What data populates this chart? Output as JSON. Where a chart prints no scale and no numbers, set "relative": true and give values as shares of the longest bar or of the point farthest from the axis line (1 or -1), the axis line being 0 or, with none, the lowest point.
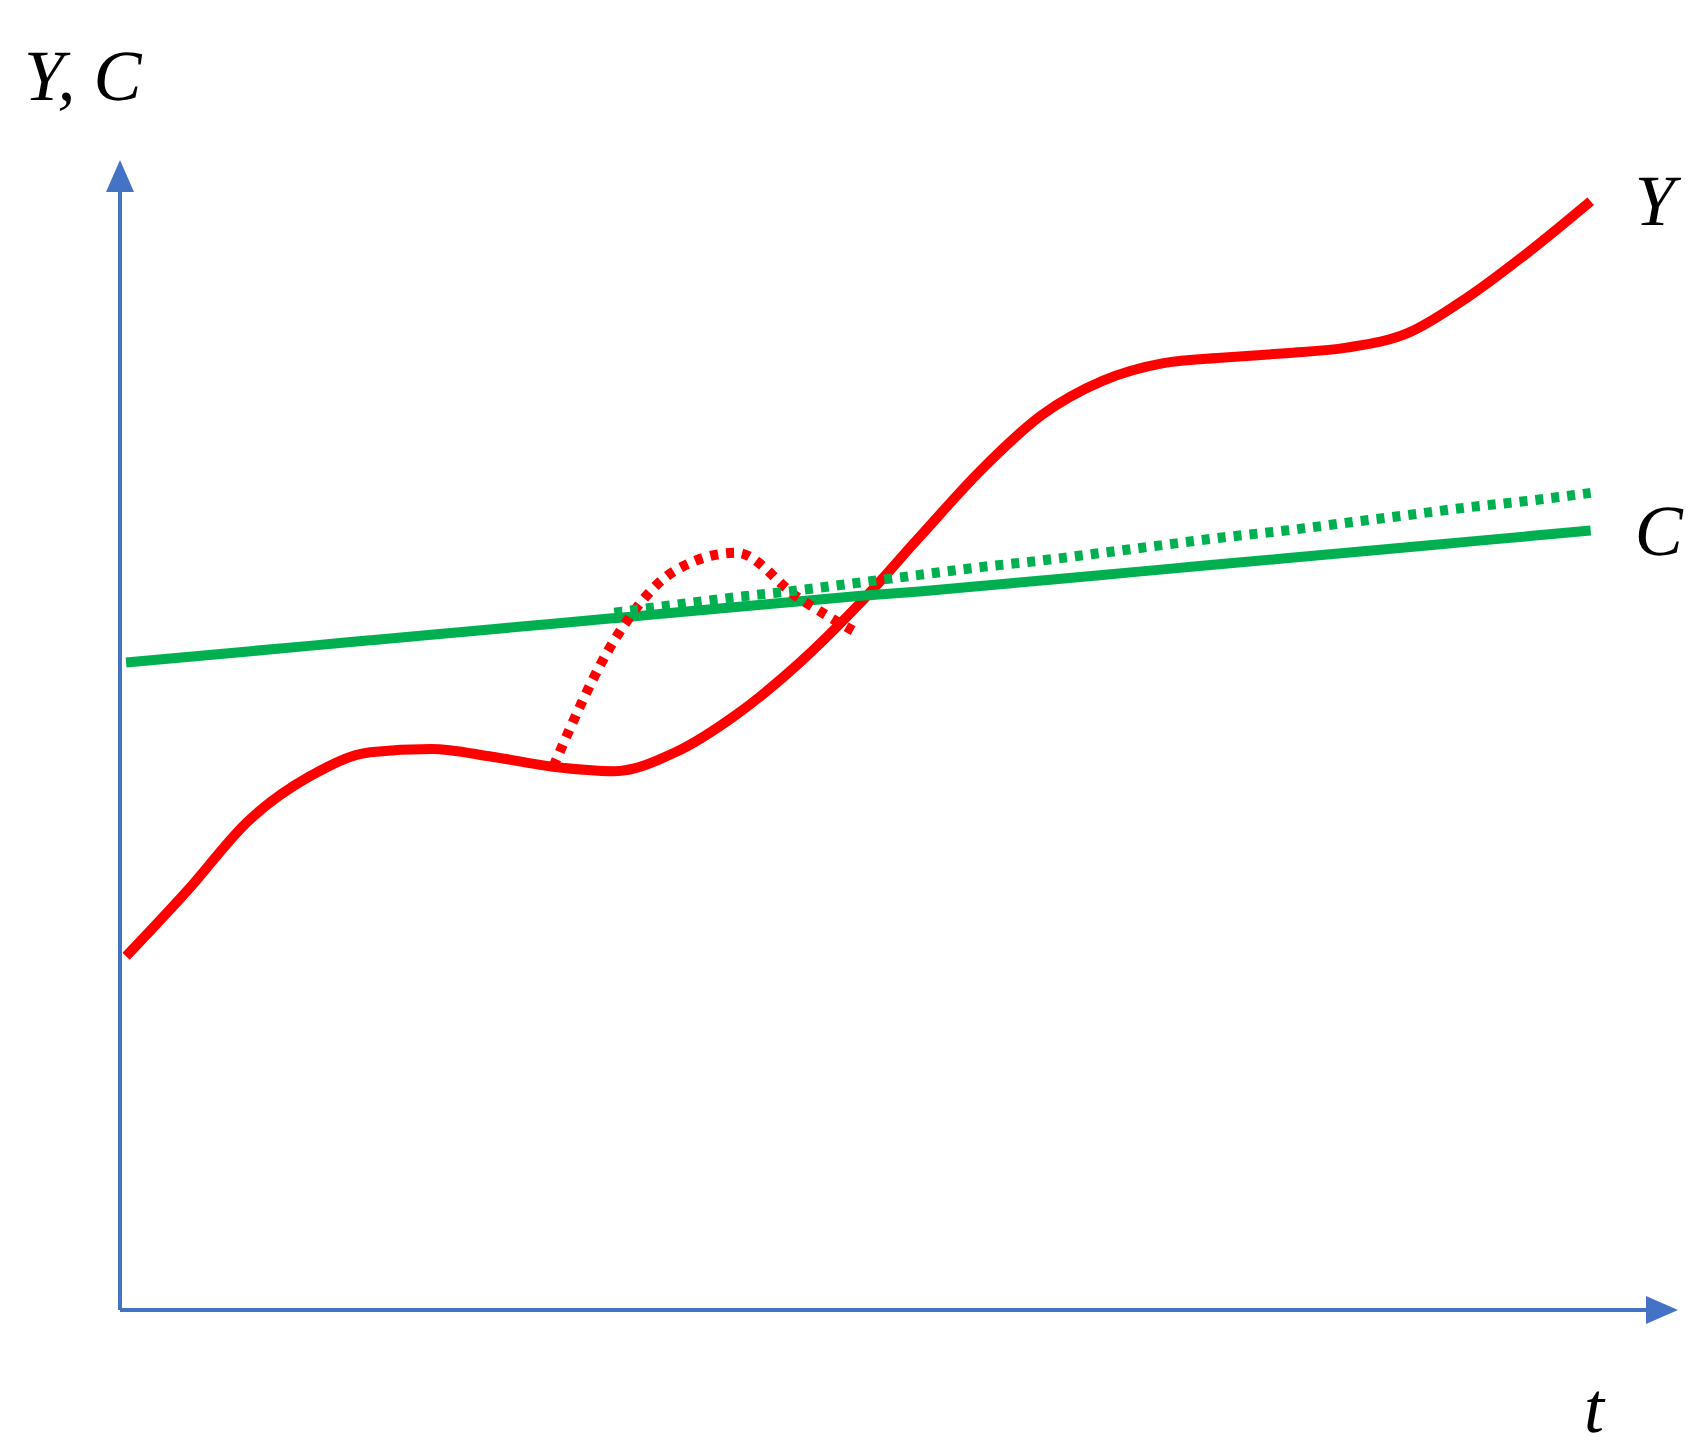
{
  "chart_data": {
    "type": "line",
    "relative": true,
    "xlabel": "t",
    "ylabel": "Y, C",
    "categories": [
      null,
      null,
      null,
      null,
      null,
      null,
      null,
      null,
      null,
      null,
      null,
      null,
      null,
      null,
      null,
      null,
      null,
      null,
      null,
      null,
      null,
      null,
      null,
      null,
      null
    ],
    "series": [
      {
        "name": "Y",
        "color": "#ff0000",
        "values": [
          0.319,
          0.378,
          0.441,
          0.481,
          0.503,
          0.506,
          0.499,
          0.49,
          0.486,
          0.503,
          0.537,
          0.582,
          0.636,
          0.697,
          0.757,
          0.807,
          0.838,
          0.854,
          0.859,
          0.863,
          0.868,
          0.881,
          0.914,
          0.955,
          1
        ]
      },
      {
        "name": "C",
        "color": "#00b050",
        "values": [
          0.584,
          0.589,
          0.594,
          0.599,
          0.604,
          0.609,
          0.614,
          0.619,
          0.624,
          0.629,
          0.634,
          0.639,
          0.644,
          0.648,
          0.653,
          0.658,
          0.663,
          0.668,
          0.673,
          0.678,
          0.683,
          0.688,
          0.693,
          0.698,
          0.703
        ]
      },
      {
        "color": "#ff0000",
        "line_style": "dotted",
        "values": [
          null,
          null,
          null,
          null,
          null,
          null,
          null,
          0.49,
          0.604,
          0.667,
          0.683,
          0.643,
          0.61,
          null,
          null,
          null,
          null,
          null,
          null,
          null,
          null,
          null,
          null,
          null,
          null
        ]
      },
      {
        "color": "#00b050",
        "line_style": "dotted",
        "values": [
          null,
          null,
          null,
          null,
          null,
          null,
          null,
          null,
          0.629,
          0.636,
          0.643,
          0.649,
          0.656,
          0.663,
          0.67,
          0.676,
          0.683,
          0.69,
          0.697,
          0.703,
          0.71,
          0.717,
          0.724,
          0.73,
          0.737
        ]
      }
    ]
  }
}
